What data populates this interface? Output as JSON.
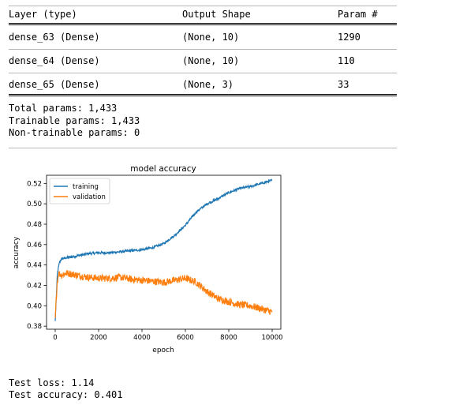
{
  "summary": {
    "headers": [
      "Layer (type)",
      "Output Shape",
      "Param #"
    ],
    "rows": [
      [
        "dense_63 (Dense)",
        "(None, 10)",
        "1290"
      ],
      [
        "dense_64 (Dense)",
        "(None, 10)",
        "110"
      ],
      [
        "dense_65 (Dense)",
        "(None, 3)",
        "33"
      ]
    ],
    "total_params": "Total params: 1,433",
    "trainable_params": "Trainable params: 1,433",
    "non_trainable_params": "Non-trainable params: 0"
  },
  "chart_data": {
    "type": "line",
    "title": "model accuracy",
    "xlabel": "epoch",
    "ylabel": "accuracy",
    "xlim": [
      -400,
      10400
    ],
    "ylim": [
      0.377,
      0.528
    ],
    "x_ticks": [
      0,
      2000,
      4000,
      6000,
      8000,
      10000
    ],
    "y_ticks": [
      0.38,
      0.4,
      0.42,
      0.44,
      0.46,
      0.48,
      0.5,
      0.52
    ],
    "legend_position": "top-left",
    "grid": false,
    "series": [
      {
        "name": "training",
        "color": "#1f77b4",
        "noise": 0.0012,
        "x": [
          0,
          100,
          200,
          300,
          500,
          800,
          1000,
          1500,
          2000,
          2500,
          3000,
          3500,
          4000,
          4500,
          5000,
          5500,
          6000,
          6500,
          7000,
          7500,
          8000,
          8500,
          9000,
          9500,
          10000
        ],
        "y": [
          0.385,
          0.432,
          0.443,
          0.446,
          0.447,
          0.448,
          0.449,
          0.451,
          0.452,
          0.452,
          0.453,
          0.454,
          0.455,
          0.457,
          0.461,
          0.469,
          0.479,
          0.492,
          0.5,
          0.505,
          0.511,
          0.515,
          0.517,
          0.52,
          0.523
        ]
      },
      {
        "name": "validation",
        "color": "#ff7f0e",
        "noise": 0.0035,
        "x": [
          0,
          80,
          150,
          300,
          500,
          800,
          1000,
          1500,
          2000,
          2500,
          3000,
          3500,
          4000,
          4500,
          5000,
          5500,
          6000,
          6500,
          7000,
          7500,
          8000,
          8500,
          9000,
          9500,
          10000
        ],
        "y": [
          0.388,
          0.42,
          0.432,
          0.43,
          0.432,
          0.431,
          0.43,
          0.428,
          0.427,
          0.427,
          0.428,
          0.426,
          0.425,
          0.424,
          0.423,
          0.425,
          0.427,
          0.423,
          0.414,
          0.407,
          0.404,
          0.401,
          0.4,
          0.397,
          0.394
        ]
      }
    ]
  },
  "results": {
    "test_loss": "Test loss: 1.14",
    "test_accuracy": "Test accuracy: 0.401"
  }
}
